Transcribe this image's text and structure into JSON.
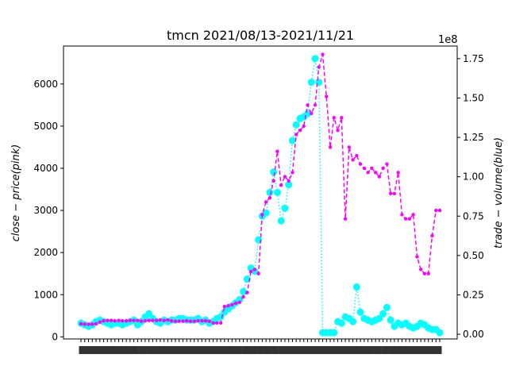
{
  "chart_data": {
    "type": "line",
    "title": "tmcn 2021/08/13-2021/11/21",
    "ylabel_left": "close − price(pink)",
    "ylabel_right": "trade − volume(blue)",
    "right_offset_label": "1e8",
    "ylim_left": [
      -50,
      6900
    ],
    "yticks_left": [
      0,
      1000,
      2000,
      3000,
      4000,
      5000,
      6000
    ],
    "ylim_right": [
      -3000000.0,
      183000000.0
    ],
    "yticks_right": [
      0.0,
      0.25,
      0.5,
      0.75,
      1.0,
      1.25,
      1.5,
      1.75
    ],
    "ytick_labels_right": [
      "0.00",
      "0.25",
      "0.50",
      "0.75",
      "1.00",
      "1.25",
      "1.50",
      "1.75"
    ],
    "colors": {
      "close": "#ff00ff",
      "volume": "#00ffff"
    },
    "series": [
      {
        "key": "close",
        "axis": "left",
        "values": [
          310,
          300,
          300,
          300,
          310,
          350,
          380,
          390,
          390,
          380,
          390,
          380,
          380,
          390,
          390,
          390,
          370,
          380,
          390,
          390,
          390,
          400,
          390,
          400,
          380,
          370,
          370,
          370,
          380,
          370,
          370,
          380,
          380,
          380,
          370,
          330,
          330,
          330,
          720,
          740,
          760,
          800,
          820,
          950,
          1050,
          1550,
          1600,
          1500,
          2900,
          3200,
          3300,
          3700,
          4400,
          3600,
          3800,
          3700,
          3900,
          4800,
          4900,
          5000,
          5500,
          5300,
          5500,
          6400,
          6700,
          5700,
          4500,
          5200,
          4900,
          5200,
          2800,
          4500,
          4200,
          4300,
          4100,
          4000,
          3900,
          4000,
          3900,
          3800,
          4000,
          4100,
          3400,
          3400,
          3900,
          2900,
          2800,
          2800,
          2900,
          1900,
          1600,
          1500,
          1500,
          2400,
          3000,
          3000
        ]
      },
      {
        "key": "volume",
        "axis": "right",
        "values": [
          7000000.0,
          6000000.0,
          5000000.0,
          6000000.0,
          8000000.0,
          9000000.0,
          8000000.0,
          7000000.0,
          6000000.0,
          7000000.0,
          7000000.0,
          6000000.0,
          7000000.0,
          8000000.0,
          9000000.0,
          6000000.0,
          8000000.0,
          11000000.0,
          13000000.0,
          10000000.0,
          8000000.0,
          7000000.0,
          9000000.0,
          8000000.0,
          9000000.0,
          9000000.0,
          10000000.0,
          10000000.0,
          9000000.0,
          9000000.0,
          9000000.0,
          10000000.0,
          8000000.0,
          9000000.0,
          7000000.0,
          8000000.0,
          10000000.0,
          11000000.0,
          14000000.0,
          16000000.0,
          18000000.0,
          20000000.0,
          22000000.0,
          27000000.0,
          35000000.0,
          42000000.0,
          40000000.0,
          60000000.0,
          75000000.0,
          77000000.0,
          90000000.0,
          103000000.0,
          90000000.0,
          72000000.0,
          80000000.0,
          95000000.0,
          123000000.0,
          133000000.0,
          137000000.0,
          138000000.0,
          140000000.0,
          160000000.0,
          175000000.0,
          160000000.0,
          1000000.0,
          1000000.0,
          1000000.0,
          1000000.0,
          8000000.0,
          7000000.0,
          11000000.0,
          10000000.0,
          8000000.0,
          30000000.0,
          14000000.0,
          10000000.0,
          9000000.0,
          8000000.0,
          9000000.0,
          10000000.0,
          13000000.0,
          17000000.0,
          9000000.0,
          5000000.0,
          7000000.0,
          6000000.0,
          7000000.0,
          5000000.0,
          4000000.0,
          5000000.0,
          7000000.0,
          6000000.0,
          4000000.0,
          3000000.0,
          3000000.0,
          1000000.0
        ]
      }
    ],
    "grid": false,
    "legend": "none"
  }
}
